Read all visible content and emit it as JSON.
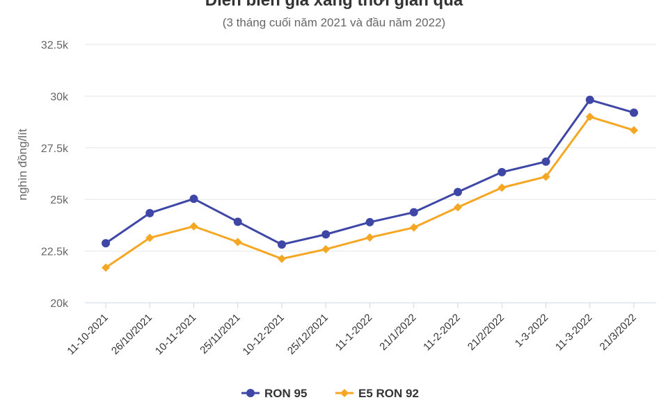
{
  "chart_data": {
    "type": "line",
    "title": "Diễn biến giá xăng thời gian qua",
    "subtitle": "(3 tháng cuối năm 2021 và đầu năm 2022)",
    "ylabel": "nghìn đồng/lít",
    "xlabel": "",
    "ylim": [
      20000,
      32500
    ],
    "yticks": [
      20000,
      22500,
      25000,
      27500,
      30000,
      32500
    ],
    "ytick_labels": [
      "20k",
      "22.5k",
      "25k",
      "27.5k",
      "30k",
      "32.5k"
    ],
    "categories": [
      "11-10-2021",
      "26/10/2021",
      "10-11-2021",
      "25/11/2021",
      "10-12-2021",
      "25/12/2021",
      "11-1-2022",
      "21/1/2022",
      "11-2-2022",
      "21/2/2022",
      "1-3-2022",
      "11-3-2022",
      "21/3/2022"
    ],
    "series": [
      {
        "name": "RON 95",
        "color": "#3f47a6",
        "marker": "circle",
        "values": [
          22880,
          24340,
          25030,
          23920,
          22820,
          23310,
          23900,
          24380,
          25360,
          26320,
          26830,
          29820,
          29200
        ]
      },
      {
        "name": "E5 RON 92",
        "color": "#f5a623",
        "marker": "diamond",
        "values": [
          21700,
          23140,
          23700,
          22940,
          22130,
          22590,
          23160,
          23640,
          24620,
          25570,
          26100,
          29000,
          28350
        ]
      }
    ],
    "grid": true,
    "legend_position": "bottom-center"
  }
}
